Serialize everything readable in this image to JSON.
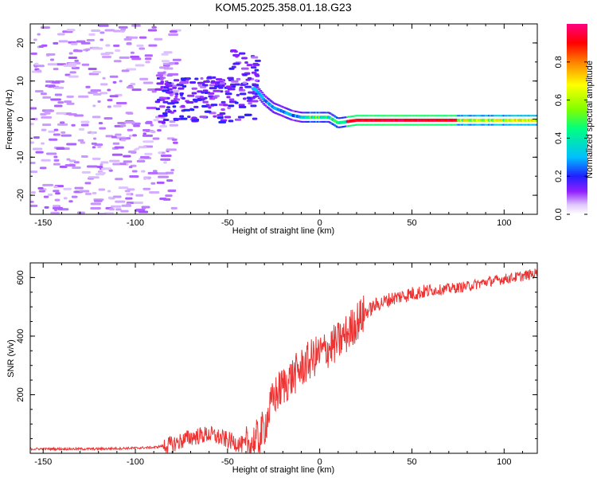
{
  "figure_title": "KOM5.2025.358.01.18.G23",
  "chart_data": [
    {
      "type": "heatmap",
      "title": "KOM5.2025.358.01.18.G23",
      "xlabel": "Height of straight line (km)",
      "ylabel": "Frequency (Hz)",
      "xlim": [
        -157,
        118
      ],
      "ylim": [
        -25,
        25
      ],
      "x_ticks": [
        -150,
        -100,
        -50,
        0,
        50,
        100
      ],
      "y_ticks": [
        -20,
        -10,
        0,
        10,
        20
      ],
      "colorbar": {
        "label": "Normalized spectral amplitude",
        "range": [
          0,
          1
        ],
        "ticks": [
          0.0,
          0.2,
          0.4,
          0.6,
          0.8
        ],
        "tick_labels": [
          "0.0",
          "0.2",
          "0.4",
          "0.6",
          "0.8"
        ],
        "colors": [
          "#ffffff",
          "#d8b8ff",
          "#8000ff",
          "#2020ff",
          "#00c0ff",
          "#00ff80",
          "#80ff00",
          "#ffff00",
          "#ff8000",
          "#ff0000",
          "#ff0080"
        ]
      },
      "ridge_frequency": {
        "x": [
          -35,
          -30,
          -25,
          -20,
          -15,
          -10,
          -5,
          0,
          5,
          10,
          20,
          30,
          50,
          80,
          118
        ],
        "y": [
          8,
          5,
          3,
          2,
          1,
          0.5,
          0.5,
          0.5,
          0.5,
          -1,
          -0.3,
          -0.3,
          -0.3,
          -0.3,
          -0.3
        ]
      }
    },
    {
      "type": "line",
      "xlabel": "Height of straight line (km)",
      "ylabel": "SNR (v/v)",
      "xlim": [
        -157,
        118
      ],
      "ylim": [
        0,
        650
      ],
      "x_ticks": [
        -150,
        -100,
        -50,
        0,
        50,
        100
      ],
      "y_ticks": [
        200,
        400,
        600
      ],
      "series": [
        {
          "name": "SNR",
          "color": "#ee3333",
          "x": [
            -157,
            -140,
            -120,
            -100,
            -90,
            -80,
            -70,
            -60,
            -50,
            -40,
            -33,
            -30,
            -25,
            -20,
            -15,
            -10,
            -5,
            0,
            5,
            10,
            15,
            20,
            25,
            30,
            40,
            50,
            60,
            70,
            80,
            90,
            100,
            110,
            118
          ],
          "y": [
            15,
            15,
            15,
            18,
            20,
            30,
            55,
            65,
            45,
            25,
            50,
            90,
            190,
            230,
            260,
            290,
            320,
            340,
            360,
            380,
            410,
            450,
            480,
            505,
            530,
            545,
            555,
            562,
            570,
            585,
            595,
            605,
            615
          ]
        }
      ]
    }
  ]
}
